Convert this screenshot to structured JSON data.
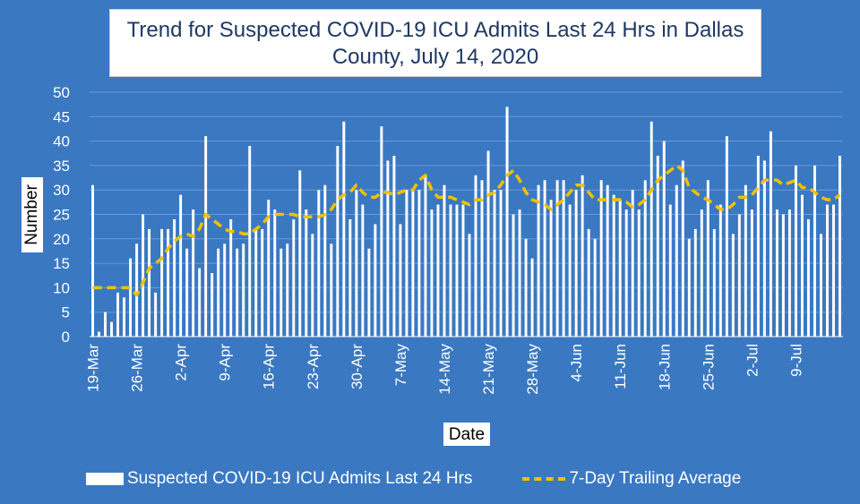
{
  "chart_data": {
    "type": "bar",
    "title_line1": "Trend for Suspected COVID-19 ICU Admits Last 24 Hrs in Dallas",
    "title_line2": "County, July 14, 2020",
    "xlabel": "Date",
    "ylabel": "Number",
    "ylim": [
      0,
      50
    ],
    "yticks": [
      "0",
      "5",
      "10",
      "15",
      "20",
      "25",
      "30",
      "35",
      "40",
      "45",
      "50"
    ],
    "start_date": "19-Mar",
    "x_tick_labels": [
      "19-Mar",
      "26-Mar",
      "2-Apr",
      "9-Apr",
      "16-Apr",
      "23-Apr",
      "30-Apr",
      "7-May",
      "14-May",
      "21-May",
      "28-May",
      "4-Jun",
      "11-Jun",
      "18-Jun",
      "25-Jun",
      "2-Jul",
      "9-Jul"
    ],
    "series": [
      {
        "name": "Suspected COVID-19 ICU Admits Last 24 Hrs",
        "type": "bar",
        "color": "#ffffff",
        "values": [
          31,
          1,
          5,
          3,
          9,
          8,
          16,
          19,
          25,
          22,
          9,
          22,
          22,
          24,
          29,
          18,
          26,
          14,
          41,
          13,
          18,
          19,
          24,
          18,
          19,
          39,
          22,
          22,
          28,
          26,
          18,
          19,
          24,
          34,
          26,
          21,
          30,
          31,
          19,
          39,
          44,
          24,
          30,
          27,
          18,
          23,
          43,
          36,
          37,
          23,
          30,
          30,
          30,
          33,
          26,
          27,
          31,
          27,
          27,
          27,
          21,
          33,
          32,
          38,
          30,
          30,
          47,
          25,
          26,
          20,
          16,
          31,
          32,
          28,
          32,
          32,
          27,
          30,
          33,
          22,
          20,
          32,
          31,
          29,
          28,
          26,
          30,
          26,
          32,
          44,
          37,
          40,
          27,
          31,
          36,
          20,
          22,
          26,
          32,
          22,
          27,
          41,
          21,
          25,
          31,
          26,
          37,
          36,
          42,
          26,
          25,
          26,
          35,
          29,
          24,
          35,
          21,
          27,
          27,
          37
        ]
      },
      {
        "name": "7-Day Trailing Average",
        "type": "line",
        "style": "dashed",
        "color": "#f2c100",
        "values": [
          10,
          10,
          10,
          10,
          10,
          10,
          10,
          8.5,
          11,
          14,
          15,
          16,
          18,
          19.5,
          20.5,
          21,
          20.5,
          22,
          25,
          24,
          23,
          22,
          21.5,
          21.5,
          21,
          21,
          22,
          23,
          24.5,
          25,
          25,
          25,
          25,
          24.5,
          24.5,
          24.5,
          24.5,
          25,
          26,
          28,
          29,
          29.5,
          31,
          29.5,
          28.5,
          28.5,
          29.5,
          29.5,
          29,
          29.5,
          30,
          30,
          32,
          33,
          30,
          28.5,
          28.5,
          28.5,
          28,
          27.5,
          27,
          28,
          28,
          29,
          29.5,
          31,
          33,
          34,
          32,
          29.5,
          28,
          27.5,
          27,
          26,
          27,
          28,
          29.5,
          31,
          31,
          29.5,
          28,
          28,
          28,
          28,
          28,
          27.5,
          26.5,
          27,
          28,
          30,
          32,
          33,
          34,
          35,
          34,
          30.5,
          29.5,
          28.5,
          28,
          27,
          26,
          26,
          27,
          28.5,
          28.5,
          29,
          30.5,
          32,
          32,
          32,
          31,
          31.5,
          32,
          30.5,
          30.5,
          29.5,
          28.5,
          28,
          28,
          29
        ]
      }
    ],
    "legend_placement": "bottom"
  },
  "legend": {
    "bar_label": "Suspected COVID-19 ICU Admits Last 24 Hrs",
    "line_label": "7-Day Trailing Average"
  },
  "colors": {
    "background": "#3a78c2",
    "bar": "#ffffff",
    "line": "#f2c100",
    "title_text": "#1f3864"
  }
}
